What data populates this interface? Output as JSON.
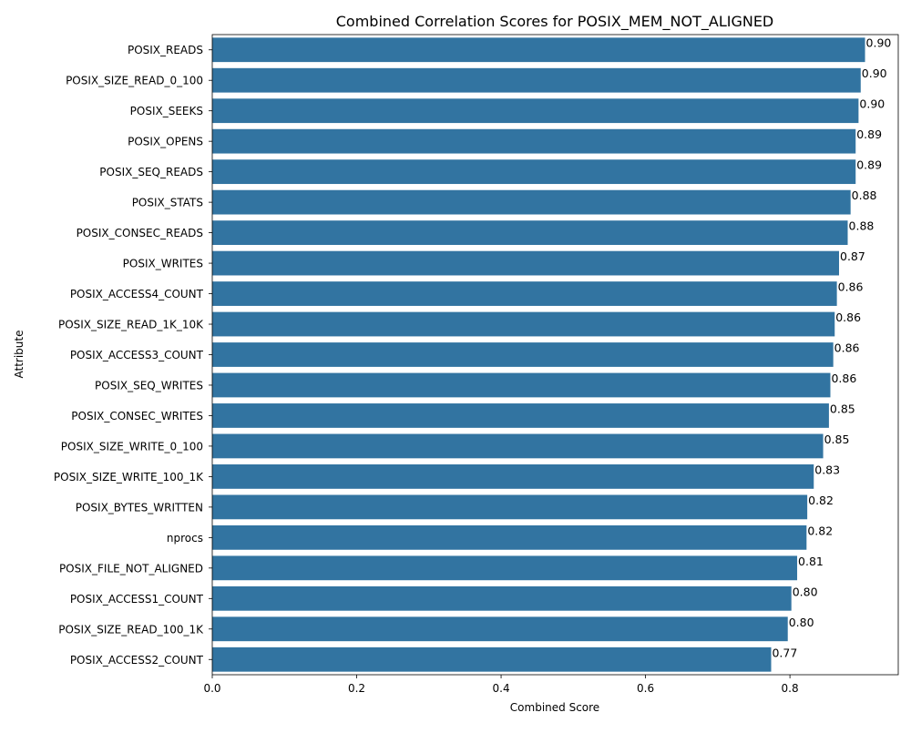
{
  "chart_data": {
    "type": "bar",
    "orientation": "horizontal",
    "title": "Combined Correlation Scores for POSIX_MEM_NOT_ALIGNED",
    "xlabel": "Combined Score",
    "ylabel": "Attribute",
    "xlim": [
      0,
      0.95
    ],
    "xticks": [
      0.0,
      0.2,
      0.4,
      0.6,
      0.8
    ],
    "xtick_labels": [
      "0.0",
      "0.2",
      "0.4",
      "0.6",
      "0.8"
    ],
    "bar_color": "#3274a1",
    "grid": false,
    "categories": [
      "POSIX_READS",
      "POSIX_SIZE_READ_0_100",
      "POSIX_SEEKS",
      "POSIX_OPENS",
      "POSIX_SEQ_READS",
      "POSIX_STATS",
      "POSIX_CONSEC_READS",
      "POSIX_WRITES",
      "POSIX_ACCESS4_COUNT",
      "POSIX_SIZE_READ_1K_10K",
      "POSIX_ACCESS3_COUNT",
      "POSIX_SEQ_WRITES",
      "POSIX_CONSEC_WRITES",
      "POSIX_SIZE_WRITE_0_100",
      "POSIX_SIZE_WRITE_100_1K",
      "POSIX_BYTES_WRITTEN",
      "nprocs",
      "POSIX_FILE_NOT_ALIGNED",
      "POSIX_ACCESS1_COUNT",
      "POSIX_SIZE_READ_100_1K",
      "POSIX_ACCESS2_COUNT"
    ],
    "values": [
      0.904,
      0.898,
      0.895,
      0.891,
      0.891,
      0.884,
      0.88,
      0.868,
      0.865,
      0.862,
      0.86,
      0.856,
      0.854,
      0.846,
      0.833,
      0.824,
      0.823,
      0.81,
      0.802,
      0.797,
      0.774
    ],
    "data_labels": [
      "0.90",
      "0.90",
      "0.90",
      "0.89",
      "0.89",
      "0.88",
      "0.88",
      "0.87",
      "0.86",
      "0.86",
      "0.86",
      "0.86",
      "0.85",
      "0.85",
      "0.83",
      "0.82",
      "0.82",
      "0.81",
      "0.80",
      "0.80",
      "0.77"
    ]
  }
}
